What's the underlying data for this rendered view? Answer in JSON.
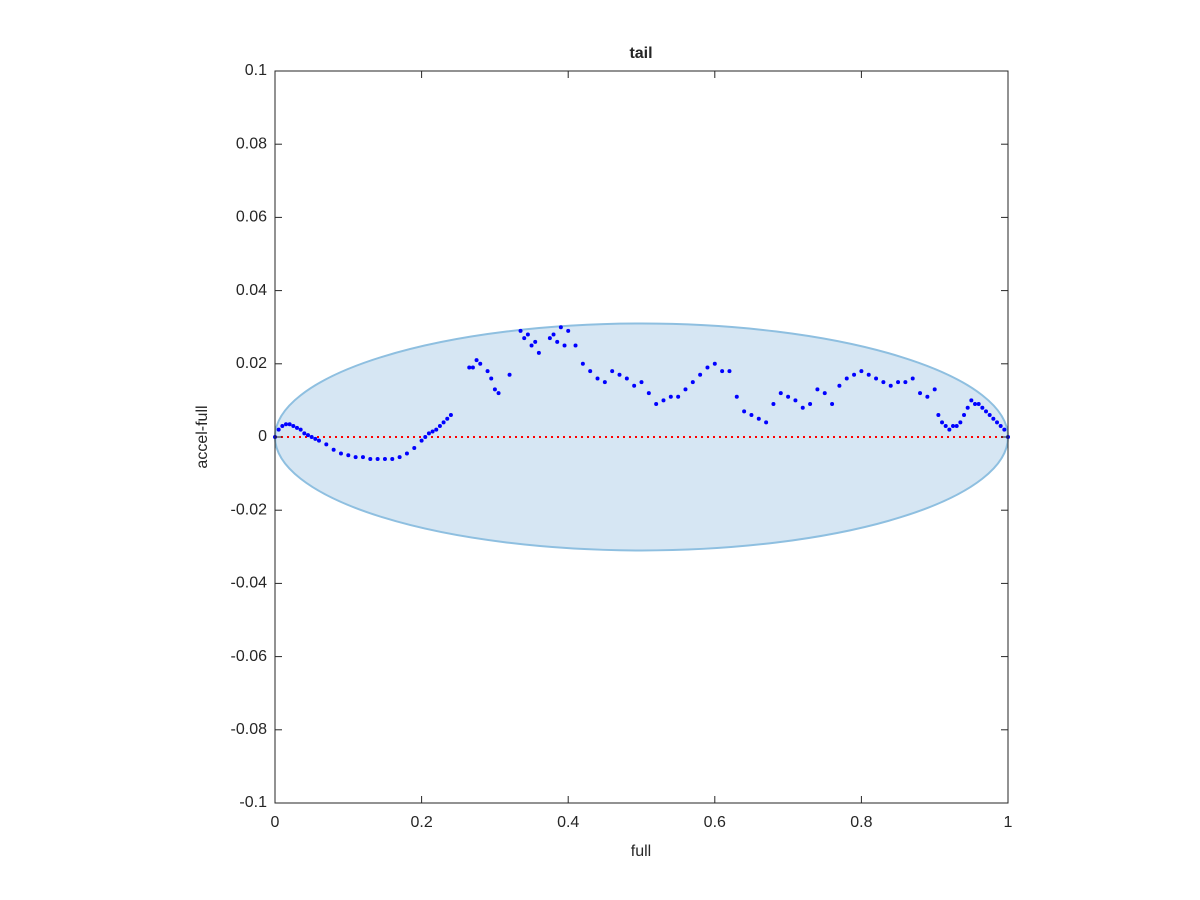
{
  "chart_data": {
    "type": "scatter",
    "title": "tail",
    "x_label": "full",
    "y_label": "accel-full",
    "x": [
      0,
      0.005,
      0.01,
      0.015,
      0.02,
      0.025,
      0.03,
      0.035,
      0.04,
      0.045,
      0.05,
      0.055,
      0.06,
      0.07,
      0.08,
      0.09,
      0.1,
      0.11,
      0.12,
      0.13,
      0.14,
      0.15,
      0.16,
      0.17,
      0.18,
      0.19,
      0.2,
      0.205,
      0.21,
      0.215,
      0.22,
      0.225,
      0.23,
      0.235,
      0.24,
      0.265,
      0.27,
      0.275,
      0.28,
      0.29,
      0.295,
      0.3,
      0.305,
      0.32,
      0.335,
      0.34,
      0.345,
      0.35,
      0.355,
      0.36,
      0.375,
      0.38,
      0.385,
      0.39,
      0.395,
      0.4,
      0.41,
      0.42,
      0.43,
      0.44,
      0.45,
      0.46,
      0.47,
      0.48,
      0.49,
      0.5,
      0.51,
      0.52,
      0.53,
      0.54,
      0.55,
      0.56,
      0.57,
      0.58,
      0.59,
      0.6,
      0.61,
      0.62,
      0.63,
      0.64,
      0.65,
      0.66,
      0.67,
      0.68,
      0.69,
      0.7,
      0.71,
      0.72,
      0.73,
      0.74,
      0.75,
      0.76,
      0.77,
      0.78,
      0.79,
      0.8,
      0.81,
      0.82,
      0.83,
      0.84,
      0.85,
      0.86,
      0.87,
      0.88,
      0.89,
      0.9,
      0.905,
      0.91,
      0.915,
      0.92,
      0.925,
      0.93,
      0.935,
      0.94,
      0.945,
      0.95,
      0.955,
      0.96,
      0.965,
      0.97,
      0.975,
      0.98,
      0.985,
      0.99,
      0.995,
      1.0
    ],
    "values": [
      0,
      0.002,
      0.003,
      0.0035,
      0.0035,
      0.003,
      0.0025,
      0.002,
      0.001,
      0.0005,
      0,
      -0.0005,
      -0.001,
      -0.002,
      -0.0035,
      -0.0045,
      -0.005,
      -0.0055,
      -0.0055,
      -0.006,
      -0.006,
      -0.006,
      -0.006,
      -0.0055,
      -0.0045,
      -0.003,
      -0.001,
      0,
      0.001,
      0.0015,
      0.002,
      0.003,
      0.004,
      0.005,
      0.006,
      0.019,
      0.019,
      0.021,
      0.02,
      0.018,
      0.016,
      0.013,
      0.012,
      0.017,
      0.029,
      0.027,
      0.028,
      0.025,
      0.026,
      0.023,
      0.027,
      0.028,
      0.026,
      0.03,
      0.025,
      0.029,
      0.025,
      0.02,
      0.018,
      0.016,
      0.015,
      0.018,
      0.017,
      0.016,
      0.014,
      0.015,
      0.012,
      0.009,
      0.01,
      0.011,
      0.011,
      0.013,
      0.015,
      0.017,
      0.019,
      0.02,
      0.018,
      0.018,
      0.011,
      0.007,
      0.006,
      0.005,
      0.004,
      0.009,
      0.012,
      0.011,
      0.01,
      0.008,
      0.009,
      0.013,
      0.012,
      0.009,
      0.014,
      0.016,
      0.017,
      0.018,
      0.017,
      0.016,
      0.015,
      0.014,
      0.015,
      0.015,
      0.016,
      0.012,
      0.011,
      0.013,
      0.006,
      0.004,
      0.003,
      0.002,
      0.003,
      0.003,
      0.004,
      0.006,
      0.008,
      0.01,
      0.009,
      0.009,
      0.008,
      0.007,
      0.006,
      0.005,
      0.004,
      0.003,
      0.002,
      0
    ],
    "color": "#0000ff",
    "ellipse": {
      "cx": 0.5,
      "cy": 0,
      "rx": 0.5,
      "ry": 0.031,
      "color": "#d6e6f3",
      "edge_color": "#8ebfe0"
    },
    "reference_line": {
      "y": 0,
      "color": "#ff0000"
    },
    "xlim": [
      0,
      1
    ],
    "ylim": [
      -0.1,
      0.1
    ],
    "xticks": [
      0,
      0.2,
      0.4,
      0.6,
      0.8,
      1
    ],
    "yticks": [
      -0.1,
      -0.08,
      -0.06,
      -0.04,
      -0.02,
      0,
      0.02,
      0.04,
      0.06,
      0.08,
      0.1
    ]
  }
}
